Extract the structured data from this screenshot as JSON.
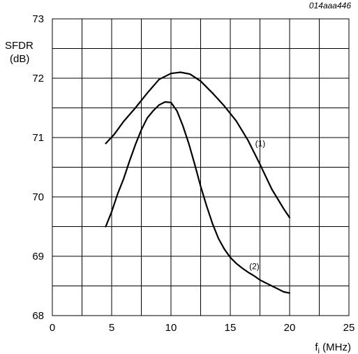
{
  "chart_data": {
    "type": "line",
    "figure_id": "014aaa446",
    "ylabel_line1": "SFDR",
    "ylabel_line2": "(dB)",
    "xlabel_main": "f",
    "xlabel_sub": "i",
    "xlabel_unit": " (MHz)",
    "xlim": [
      0,
      25
    ],
    "ylim": [
      68,
      73
    ],
    "x_ticks": [
      0,
      5,
      10,
      15,
      20,
      25
    ],
    "y_ticks": [
      68,
      69,
      70,
      71,
      72,
      73
    ],
    "x_tick_labels": [
      "0",
      "5",
      "10",
      "15",
      "20",
      "25"
    ],
    "y_tick_labels": [
      "68",
      "69",
      "70",
      "71",
      "72",
      "73"
    ],
    "grid": true,
    "legend": "none",
    "series": [
      {
        "name": "(1)",
        "x": [
          4.5,
          5.2,
          6.0,
          7.0,
          8.0,
          9.0,
          10.0,
          10.8,
          11.6,
          12.5,
          13.5,
          14.5,
          15.5,
          16.5,
          17.5,
          18.5,
          19.5,
          20.0
        ],
        "y": [
          70.9,
          71.05,
          71.27,
          71.5,
          71.75,
          71.98,
          72.08,
          72.1,
          72.07,
          71.95,
          71.75,
          71.53,
          71.28,
          70.95,
          70.55,
          70.13,
          69.8,
          69.65
        ]
      },
      {
        "name": "(2)",
        "x": [
          4.5,
          5.0,
          5.5,
          6.0,
          6.5,
          7.0,
          7.5,
          8.0,
          8.5,
          9.0,
          9.5,
          10.0,
          10.5,
          11.0,
          11.5,
          12.0,
          12.5,
          13.0,
          13.5,
          14.0,
          14.5,
          15.0,
          15.5,
          16.0,
          16.5,
          17.0,
          17.5,
          18.0,
          18.5,
          19.0,
          19.5,
          20.0
        ],
        "y": [
          69.5,
          69.75,
          70.05,
          70.3,
          70.6,
          70.88,
          71.13,
          71.33,
          71.45,
          71.55,
          71.6,
          71.59,
          71.45,
          71.2,
          70.9,
          70.55,
          70.18,
          69.85,
          69.55,
          69.3,
          69.12,
          68.98,
          68.88,
          68.8,
          68.73,
          68.67,
          68.6,
          68.55,
          68.5,
          68.45,
          68.4,
          68.38
        ]
      }
    ]
  }
}
